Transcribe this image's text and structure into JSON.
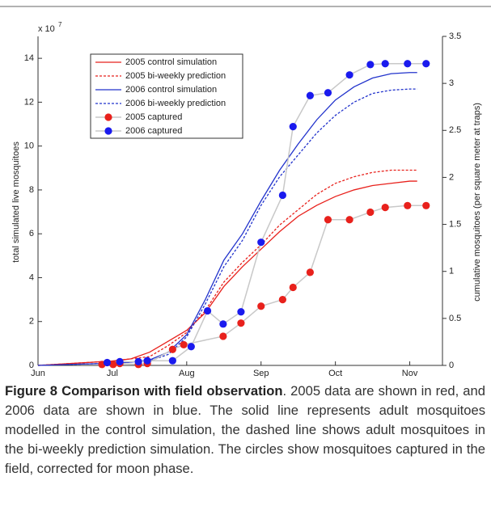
{
  "chart_data": {
    "type": "line",
    "multiplier": "x 10",
    "multiplier_exponent": "7",
    "y_label": "total simulated live mosquitoes",
    "y2_label": "cumulative mosquitoes (per square meter at traps)",
    "xlim": [
      6,
      11.44
    ],
    "xticks": [
      {
        "value": 6,
        "label": "Jun"
      },
      {
        "value": 7,
        "label": "Jul"
      },
      {
        "value": 8,
        "label": "Aug"
      },
      {
        "value": 9,
        "label": "Sep"
      },
      {
        "value": 10,
        "label": "Oct"
      },
      {
        "value": 11,
        "label": "Nov"
      }
    ],
    "ylim": [
      0,
      15
    ],
    "yticks": [
      0,
      2,
      4,
      6,
      8,
      10,
      12,
      14
    ],
    "y2lim": [
      0,
      3.5
    ],
    "y2ticks": [
      0,
      0.5,
      1,
      1.5,
      2,
      2.5,
      3,
      3.5
    ],
    "legend": "upper left",
    "series": [
      {
        "name": "2005 control simulation",
        "color": "#e8211c",
        "style": "solid",
        "x": [
          6,
          6.5,
          7,
          7.25,
          7.5,
          7.75,
          8,
          8.25,
          8.5,
          8.75,
          9,
          9.25,
          9.5,
          9.75,
          10,
          10.25,
          10.5,
          10.75,
          11,
          11.1
        ],
        "values": [
          0,
          0.1,
          0.2,
          0.3,
          0.6,
          1.1,
          1.6,
          2.4,
          3.6,
          4.5,
          5.3,
          6.1,
          6.8,
          7.3,
          7.7,
          8.0,
          8.2,
          8.3,
          8.4,
          8.4
        ]
      },
      {
        "name": "2005 bi-weekly prediction",
        "color": "#e8211c",
        "style": "dashed",
        "x": [
          6,
          6.5,
          7,
          7.25,
          7.5,
          7.75,
          8,
          8.25,
          8.5,
          8.75,
          9,
          9.25,
          9.5,
          9.75,
          10,
          10.25,
          10.5,
          10.75,
          11,
          11.1
        ],
        "values": [
          0,
          0.1,
          0.2,
          0.3,
          0.4,
          0.9,
          1.5,
          2.5,
          3.8,
          4.7,
          5.5,
          6.4,
          7.1,
          7.8,
          8.3,
          8.6,
          8.8,
          8.9,
          8.9,
          8.9
        ]
      },
      {
        "name": "2006 control simulation",
        "color": "#2233cc",
        "style": "solid",
        "x": [
          6,
          6.5,
          7,
          7.25,
          7.5,
          7.75,
          8,
          8.25,
          8.5,
          8.75,
          9,
          9.25,
          9.5,
          9.75,
          10,
          10.25,
          10.5,
          10.75,
          11,
          11.1
        ],
        "values": [
          0,
          0.05,
          0.1,
          0.15,
          0.25,
          0.6,
          1.4,
          3.0,
          4.8,
          6.0,
          7.5,
          8.9,
          10.1,
          11.2,
          12.1,
          12.7,
          13.1,
          13.3,
          13.35,
          13.35
        ]
      },
      {
        "name": "2006 bi-weekly prediction",
        "color": "#2233cc",
        "style": "dashed",
        "x": [
          6,
          6.5,
          7,
          7.25,
          7.5,
          7.75,
          8,
          8.25,
          8.5,
          8.75,
          9,
          9.25,
          9.5,
          9.75,
          10,
          10.25,
          10.5,
          10.75,
          11,
          11.1
        ],
        "values": [
          0,
          0.05,
          0.1,
          0.15,
          0.2,
          0.5,
          1.3,
          2.8,
          4.5,
          5.7,
          7.3,
          8.6,
          9.6,
          10.6,
          11.4,
          12.0,
          12.4,
          12.55,
          12.6,
          12.6
        ]
      },
      {
        "name": "2005 captured",
        "color": "#e8211c",
        "style": "markers",
        "axis": "y2",
        "connect_color": "#c8c8c8",
        "x": [
          6.86,
          7.01,
          7.1,
          7.35,
          7.47,
          7.81,
          7.96,
          8.49,
          8.73,
          9.0,
          9.29,
          9.43,
          9.66,
          9.9,
          10.19,
          10.47,
          10.67,
          10.97,
          11.22
        ],
        "values": [
          0.01,
          0.01,
          0.02,
          0.01,
          0.02,
          0.17,
          0.22,
          0.31,
          0.45,
          0.63,
          0.7,
          0.83,
          0.99,
          1.55,
          1.55,
          1.63,
          1.68,
          1.7,
          1.7
        ]
      },
      {
        "name": "2006 captured",
        "color": "#1a1aee",
        "style": "markers",
        "axis": "y2",
        "connect_color": "#c8c8c8",
        "x": [
          6.93,
          7.1,
          7.35,
          7.47,
          7.81,
          8.06,
          8.28,
          8.49,
          8.73,
          9.0,
          9.29,
          9.43,
          9.66,
          9.9,
          10.19,
          10.47,
          10.67,
          10.97,
          11.22
        ],
        "values": [
          0.03,
          0.04,
          0.04,
          0.05,
          0.05,
          0.2,
          0.58,
          0.44,
          0.57,
          1.31,
          1.81,
          2.54,
          2.87,
          2.9,
          3.09,
          3.2,
          3.21,
          3.21,
          3.21
        ]
      }
    ]
  },
  "caption": {
    "label": "Figure 8 Comparison with field observation",
    "text": ". 2005 data are shown in red, and 2006 data are shown in blue. The solid line represents adult mosquitoes modelled in the control simulation, the dashed line shows adult mosquitoes in the bi-weekly prediction simulation. The circles show mosquitoes captured in the field, corrected for moon phase."
  }
}
